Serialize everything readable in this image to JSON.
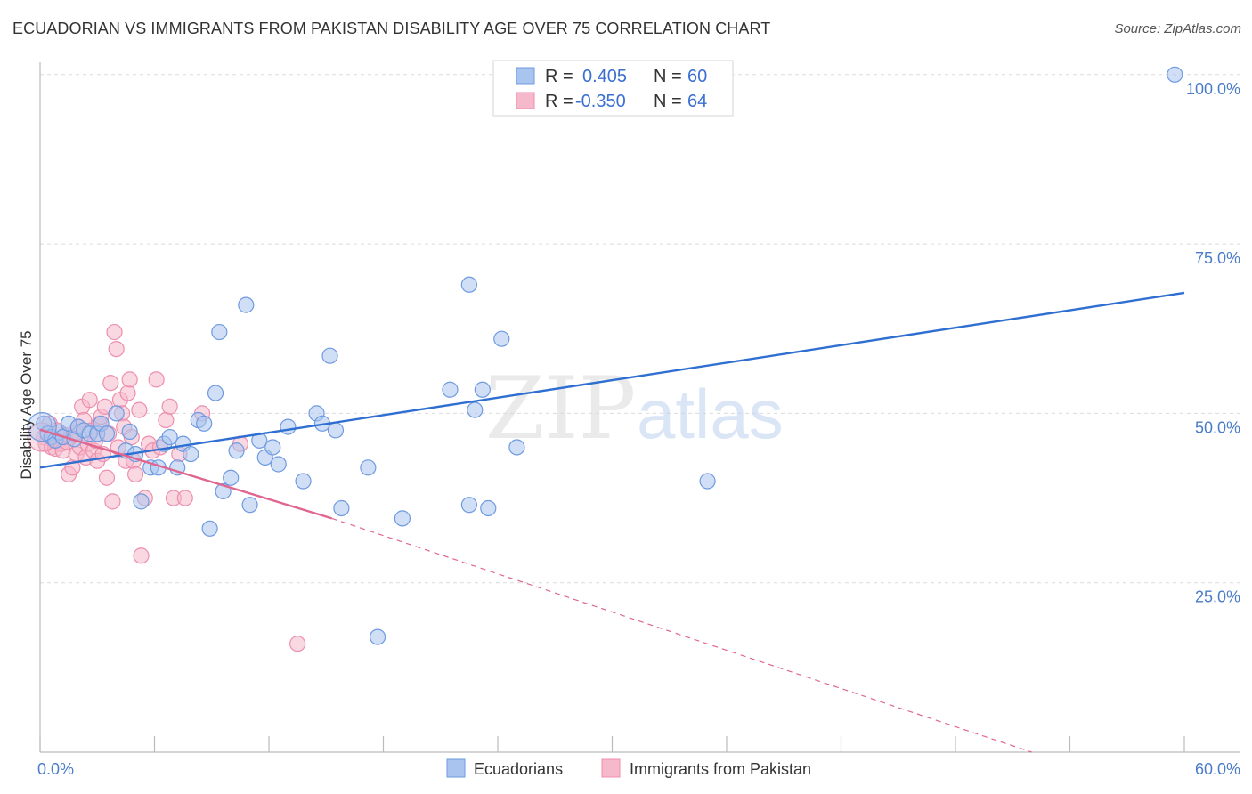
{
  "title": "ECUADORIAN VS IMMIGRANTS FROM PAKISTAN DISABILITY AGE OVER 75 CORRELATION CHART",
  "source": "Source: ZipAtlas.com",
  "watermark": {
    "zip": "ZIP",
    "atlas": "atlas"
  },
  "colors": {
    "blue_fill": "#a9c4ef",
    "blue_stroke": "#6f9ae0",
    "blue_line": "#2f6fd1",
    "pink_fill": "#f6b8cb",
    "pink_stroke": "#ec8fae",
    "pink_line": "#e0668f",
    "grid": "#dcdcdc",
    "tick_text": "#4a7cc9"
  },
  "legend_top": {
    "rows": [
      {
        "r_label": "R =",
        "r_value": "0.405",
        "n_label": "N =",
        "n_value": "60",
        "series": "blue"
      },
      {
        "r_label": "R =",
        "r_value": "-0.350",
        "n_label": "N =",
        "n_value": "64",
        "series": "pink"
      }
    ]
  },
  "chart_data": {
    "type": "scatter",
    "title": "ECUADORIAN VS IMMIGRANTS FROM PAKISTAN DISABILITY AGE OVER 75 CORRELATION CHART",
    "xlabel": "",
    "ylabel": "Disability Age Over 75",
    "xlim": [
      0,
      60
    ],
    "ylim": [
      0,
      102
    ],
    "x_tick_labels": [
      "0.0%",
      "60.0%"
    ],
    "y_ticks": [
      25,
      50,
      75,
      100
    ],
    "y_tick_labels": [
      "25.0%",
      "50.0%",
      "75.0%",
      "100.0%"
    ],
    "grid": true,
    "series": [
      {
        "name": "Ecuadorians",
        "color": "blue",
        "R": 0.405,
        "N": 60,
        "trend": {
          "x0": 0,
          "y0": 42.0,
          "x1": 60,
          "y1": 67.8
        },
        "points": [
          [
            0.2,
            48.5
          ],
          [
            0.4,
            47.0
          ],
          [
            0.6,
            46.5
          ],
          [
            0.8,
            46.0
          ],
          [
            1.0,
            47.2
          ],
          [
            1.2,
            46.5
          ],
          [
            1.5,
            48.5
          ],
          [
            1.8,
            46.2
          ],
          [
            2.0,
            48.0
          ],
          [
            2.3,
            47.5
          ],
          [
            2.6,
            47.0
          ],
          [
            3.0,
            47.0
          ],
          [
            3.2,
            48.5
          ],
          [
            3.5,
            47.0
          ],
          [
            4.0,
            50.0
          ],
          [
            4.5,
            44.5
          ],
          [
            4.7,
            47.3
          ],
          [
            5.0,
            44.0
          ],
          [
            5.3,
            37.0
          ],
          [
            5.8,
            42.0
          ],
          [
            6.2,
            42.0
          ],
          [
            6.5,
            45.5
          ],
          [
            6.8,
            46.5
          ],
          [
            7.2,
            42.0
          ],
          [
            7.5,
            45.5
          ],
          [
            7.9,
            44.0
          ],
          [
            8.3,
            49.0
          ],
          [
            8.6,
            48.5
          ],
          [
            8.9,
            33.0
          ],
          [
            9.2,
            53.0
          ],
          [
            9.4,
            62.0
          ],
          [
            9.6,
            38.5
          ],
          [
            10.0,
            40.5
          ],
          [
            10.3,
            44.5
          ],
          [
            10.8,
            66.0
          ],
          [
            11.0,
            36.5
          ],
          [
            11.5,
            46.0
          ],
          [
            11.8,
            43.5
          ],
          [
            12.2,
            45.0
          ],
          [
            12.5,
            42.5
          ],
          [
            13.0,
            48.0
          ],
          [
            13.8,
            40.0
          ],
          [
            14.5,
            50.0
          ],
          [
            14.8,
            48.5
          ],
          [
            15.2,
            58.5
          ],
          [
            15.5,
            47.5
          ],
          [
            15.8,
            36.0
          ],
          [
            17.2,
            42.0
          ],
          [
            17.7,
            17.0
          ],
          [
            19.0,
            34.5
          ],
          [
            21.5,
            53.5
          ],
          [
            22.5,
            69.0
          ],
          [
            22.5,
            36.5
          ],
          [
            22.8,
            50.5
          ],
          [
            23.2,
            53.5
          ],
          [
            23.5,
            36.0
          ],
          [
            24.2,
            61.0
          ],
          [
            25.0,
            45.0
          ],
          [
            35.0,
            40.0
          ],
          [
            59.5,
            100.0
          ]
        ],
        "big_point": [
          0.1,
          48.0
        ]
      },
      {
        "name": "Immigrants from Pakistan",
        "color": "pink",
        "R": -0.35,
        "N": 64,
        "trend_solid": {
          "x0": 0,
          "y0": 47.6,
          "x1": 15.3,
          "y1": 34.5
        },
        "trend_dashed": {
          "x0": 15.3,
          "y0": 34.5,
          "x1": 52.0,
          "y1": 0.0
        },
        "points": [
          [
            0.2,
            46.5
          ],
          [
            0.3,
            45.5
          ],
          [
            0.4,
            47.0
          ],
          [
            0.5,
            48.5
          ],
          [
            0.6,
            45.0
          ],
          [
            0.7,
            46.0
          ],
          [
            0.8,
            44.8
          ],
          [
            0.9,
            47.5
          ],
          [
            1.0,
            46.0
          ],
          [
            1.1,
            45.5
          ],
          [
            1.2,
            44.5
          ],
          [
            1.3,
            46.8
          ],
          [
            1.4,
            45.8
          ],
          [
            1.5,
            41.0
          ],
          [
            1.6,
            46.5
          ],
          [
            1.7,
            42.0
          ],
          [
            1.8,
            47.0
          ],
          [
            1.9,
            44.0
          ],
          [
            2.0,
            48.0
          ],
          [
            2.1,
            45.0
          ],
          [
            2.2,
            51.0
          ],
          [
            2.3,
            49.0
          ],
          [
            2.4,
            43.5
          ],
          [
            2.5,
            45.5
          ],
          [
            2.6,
            52.0
          ],
          [
            2.7,
            47.5
          ],
          [
            2.8,
            44.5
          ],
          [
            2.9,
            46.0
          ],
          [
            3.0,
            43.0
          ],
          [
            3.1,
            48.5
          ],
          [
            3.2,
            49.5
          ],
          [
            3.3,
            44.0
          ],
          [
            3.4,
            51.0
          ],
          [
            3.5,
            40.5
          ],
          [
            3.6,
            47.0
          ],
          [
            3.7,
            54.5
          ],
          [
            3.8,
            37.0
          ],
          [
            3.9,
            62.0
          ],
          [
            4.0,
            59.5
          ],
          [
            4.1,
            45.0
          ],
          [
            4.2,
            52.0
          ],
          [
            4.3,
            50.0
          ],
          [
            4.4,
            48.0
          ],
          [
            4.5,
            43.0
          ],
          [
            4.6,
            53.0
          ],
          [
            4.7,
            55.0
          ],
          [
            4.8,
            46.5
          ],
          [
            4.9,
            43.0
          ],
          [
            5.0,
            41.0
          ],
          [
            5.2,
            50.5
          ],
          [
            5.3,
            29.0
          ],
          [
            5.5,
            37.5
          ],
          [
            5.7,
            45.5
          ],
          [
            5.9,
            44.5
          ],
          [
            6.1,
            55.0
          ],
          [
            6.3,
            45.0
          ],
          [
            6.6,
            49.0
          ],
          [
            6.8,
            51.0
          ],
          [
            7.0,
            37.5
          ],
          [
            7.3,
            44.0
          ],
          [
            7.6,
            37.5
          ],
          [
            8.5,
            50.0
          ],
          [
            10.5,
            45.5
          ],
          [
            13.5,
            16.0
          ]
        ],
        "big_point": [
          0.1,
          46.5
        ]
      }
    ]
  },
  "legend_bottom": {
    "items": [
      {
        "label": "Ecuadorians",
        "series": "blue"
      },
      {
        "label": "Immigrants from Pakistan",
        "series": "pink"
      }
    ]
  }
}
